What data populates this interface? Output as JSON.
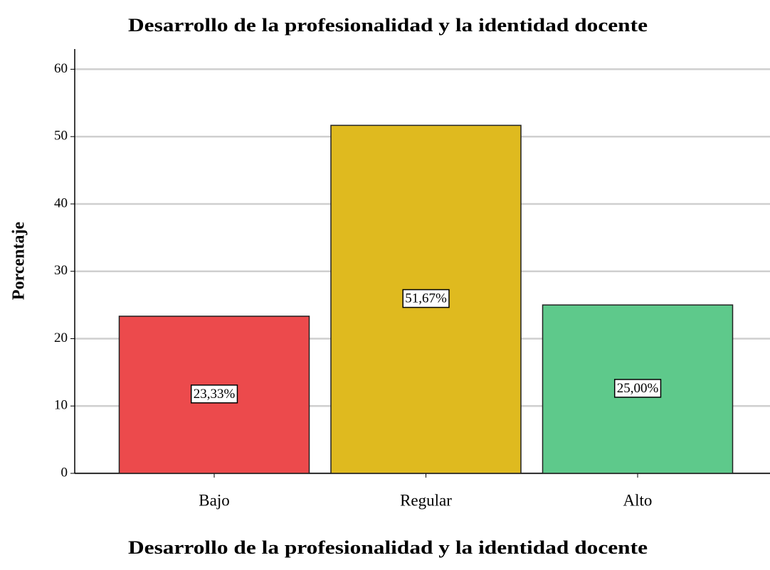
{
  "chart_data": {
    "type": "bar",
    "title": "Desarrollo de la profesionalidad y la identidad docente",
    "x_label": "Desarrollo de la profesionalidad y la identidad docente",
    "y_label": "Porcentaje",
    "categories": [
      "Bajo",
      "Regular",
      "Alto"
    ],
    "values": [
      23.33,
      51.67,
      25.0
    ],
    "value_labels": [
      "23,33%",
      "51,67%",
      "25,00%"
    ],
    "colors": [
      "#ec4a4c",
      "#dfba1f",
      "#5ec98b"
    ],
    "ylim": [
      0,
      63
    ],
    "yticks": [
      0,
      10,
      20,
      30,
      40,
      50,
      60
    ],
    "grid": true
  }
}
